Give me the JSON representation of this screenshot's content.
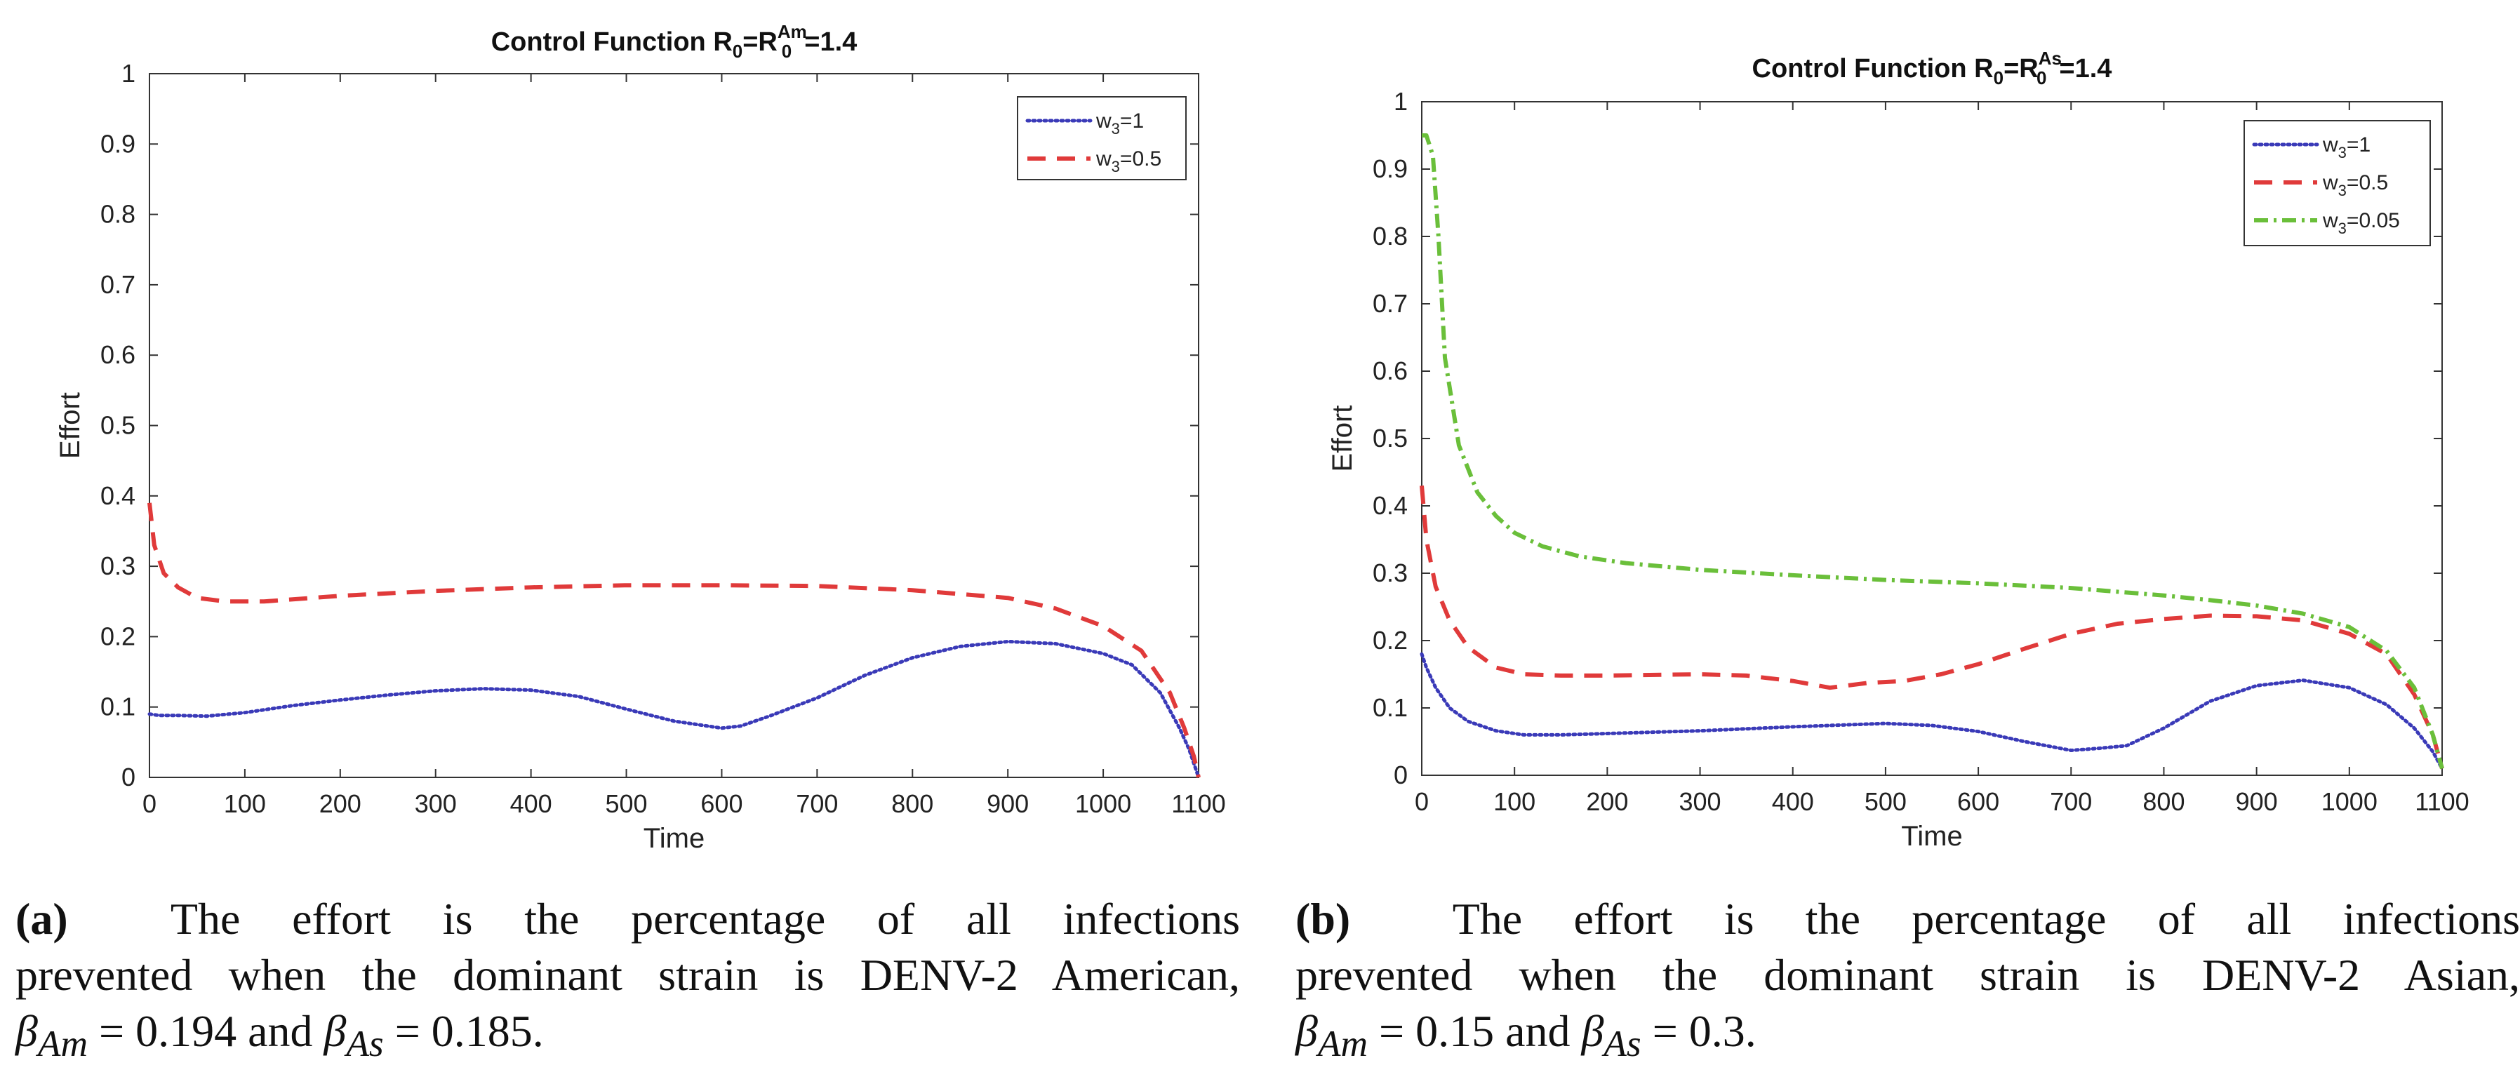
{
  "chart_data": [
    {
      "type": "line",
      "title": "Control Function R",
      "title_parts": {
        "base": "Control Function R",
        "sub": "0",
        "eq": "=R",
        "sub2": "0",
        "sup2": "Am",
        "tail": "=1.4"
      },
      "xlabel": "Time",
      "ylabel": "Effort",
      "xlim": [
        0,
        1100
      ],
      "ylim": [
        0,
        1
      ],
      "xticks": [
        0,
        100,
        200,
        300,
        400,
        500,
        600,
        700,
        800,
        900,
        1000,
        1100
      ],
      "yticks": [
        0,
        0.1,
        0.2,
        0.3,
        0.4,
        0.5,
        0.6,
        0.7,
        0.8,
        0.9,
        1
      ],
      "legend_position": "top-right",
      "series": [
        {
          "name": "w",
          "sub": "3",
          "suffix": "=1",
          "style": "dotted",
          "color": "#3a3ab8",
          "x": [
            0,
            10,
            30,
            60,
            100,
            150,
            200,
            250,
            300,
            350,
            400,
            450,
            500,
            550,
            600,
            620,
            650,
            700,
            750,
            800,
            850,
            900,
            950,
            1000,
            1030,
            1060,
            1080,
            1090,
            1100
          ],
          "y": [
            0.09,
            0.088,
            0.088,
            0.087,
            0.092,
            0.102,
            0.11,
            0.117,
            0.123,
            0.126,
            0.124,
            0.115,
            0.097,
            0.08,
            0.07,
            0.073,
            0.087,
            0.113,
            0.145,
            0.17,
            0.186,
            0.193,
            0.19,
            0.176,
            0.16,
            0.12,
            0.07,
            0.04,
            0.0
          ]
        },
        {
          "name": "w",
          "sub": "3",
          "suffix": "=0.5",
          "style": "dashed",
          "color": "#e03a3a",
          "x": [
            0,
            5,
            15,
            30,
            50,
            80,
            120,
            200,
            300,
            400,
            500,
            600,
            700,
            800,
            900,
            950,
            1000,
            1040,
            1070,
            1085,
            1095,
            1100
          ],
          "y": [
            0.39,
            0.33,
            0.29,
            0.27,
            0.255,
            0.25,
            0.25,
            0.258,
            0.265,
            0.27,
            0.273,
            0.273,
            0.272,
            0.266,
            0.255,
            0.24,
            0.215,
            0.18,
            0.12,
            0.07,
            0.03,
            0.0
          ]
        }
      ]
    },
    {
      "type": "line",
      "title": "Control Function R",
      "title_parts": {
        "base": "Control Function R",
        "sub": "0",
        "eq": "=R",
        "sub2": "0",
        "sup2": "As",
        "tail": "=1.4"
      },
      "xlabel": "Time",
      "ylabel": "Effort",
      "xlim": [
        0,
        1100
      ],
      "ylim": [
        0,
        1
      ],
      "xticks": [
        0,
        100,
        200,
        300,
        400,
        500,
        600,
        700,
        800,
        900,
        1000,
        1100
      ],
      "yticks": [
        0,
        0.1,
        0.2,
        0.3,
        0.4,
        0.5,
        0.6,
        0.7,
        0.8,
        0.9,
        1
      ],
      "legend_position": "top-right",
      "series": [
        {
          "name": "w",
          "sub": "3",
          "suffix": "=1",
          "style": "dotted",
          "color": "#3a3ab8",
          "x": [
            0,
            5,
            15,
            30,
            50,
            80,
            110,
            150,
            200,
            300,
            400,
            500,
            550,
            600,
            650,
            700,
            730,
            760,
            800,
            850,
            900,
            950,
            1000,
            1040,
            1070,
            1090,
            1100
          ],
          "y": [
            0.18,
            0.16,
            0.13,
            0.1,
            0.08,
            0.066,
            0.06,
            0.06,
            0.062,
            0.066,
            0.072,
            0.077,
            0.074,
            0.065,
            0.05,
            0.037,
            0.04,
            0.044,
            0.07,
            0.11,
            0.133,
            0.141,
            0.13,
            0.105,
            0.07,
            0.035,
            0.01
          ]
        },
        {
          "name": "w",
          "sub": "3",
          "suffix": "=0.5",
          "style": "dashed",
          "color": "#e03a3a",
          "x": [
            0,
            5,
            15,
            30,
            50,
            80,
            110,
            150,
            200,
            300,
            350,
            400,
            440,
            480,
            520,
            560,
            600,
            650,
            700,
            750,
            800,
            850,
            900,
            950,
            1000,
            1040,
            1070,
            1090,
            1100
          ],
          "y": [
            0.43,
            0.35,
            0.28,
            0.23,
            0.19,
            0.16,
            0.15,
            0.148,
            0.148,
            0.15,
            0.148,
            0.14,
            0.13,
            0.137,
            0.14,
            0.15,
            0.165,
            0.188,
            0.21,
            0.225,
            0.232,
            0.237,
            0.236,
            0.23,
            0.21,
            0.18,
            0.12,
            0.06,
            0.01
          ]
        },
        {
          "name": "w",
          "sub": "3",
          "suffix": "=0.05",
          "style": "dashdot",
          "color": "#6abf3a",
          "x": [
            0,
            5,
            12,
            18,
            25,
            40,
            60,
            80,
            100,
            130,
            170,
            220,
            300,
            400,
            500,
            600,
            700,
            800,
            850,
            900,
            950,
            1000,
            1040,
            1070,
            1090,
            1100
          ],
          "y": [
            0.95,
            0.95,
            0.92,
            0.8,
            0.62,
            0.49,
            0.42,
            0.385,
            0.36,
            0.34,
            0.325,
            0.315,
            0.305,
            0.297,
            0.29,
            0.285,
            0.278,
            0.267,
            0.26,
            0.252,
            0.24,
            0.22,
            0.185,
            0.13,
            0.06,
            0.01
          ]
        }
      ]
    }
  ],
  "captions": [
    {
      "letter": "(a)",
      "line1": "The effort is the percentage of all infections",
      "line2": "prevented when the dominant strain is DENV-2 American,",
      "beta1": "β",
      "beta1_sub": "Am",
      "eq1": " = 0.194 and ",
      "beta2": "β",
      "beta2_sub": "As",
      "eq2": " = 0.185."
    },
    {
      "letter": "(b)",
      "line1": "The effort is the percentage of all infections",
      "line2": "prevented when the dominant strain is DENV-2 Asian,",
      "beta1": "β",
      "beta1_sub": "Am",
      "eq1": " = 0.15 and ",
      "beta2": "β",
      "beta2_sub": "As",
      "eq2": " = 0.3."
    }
  ]
}
